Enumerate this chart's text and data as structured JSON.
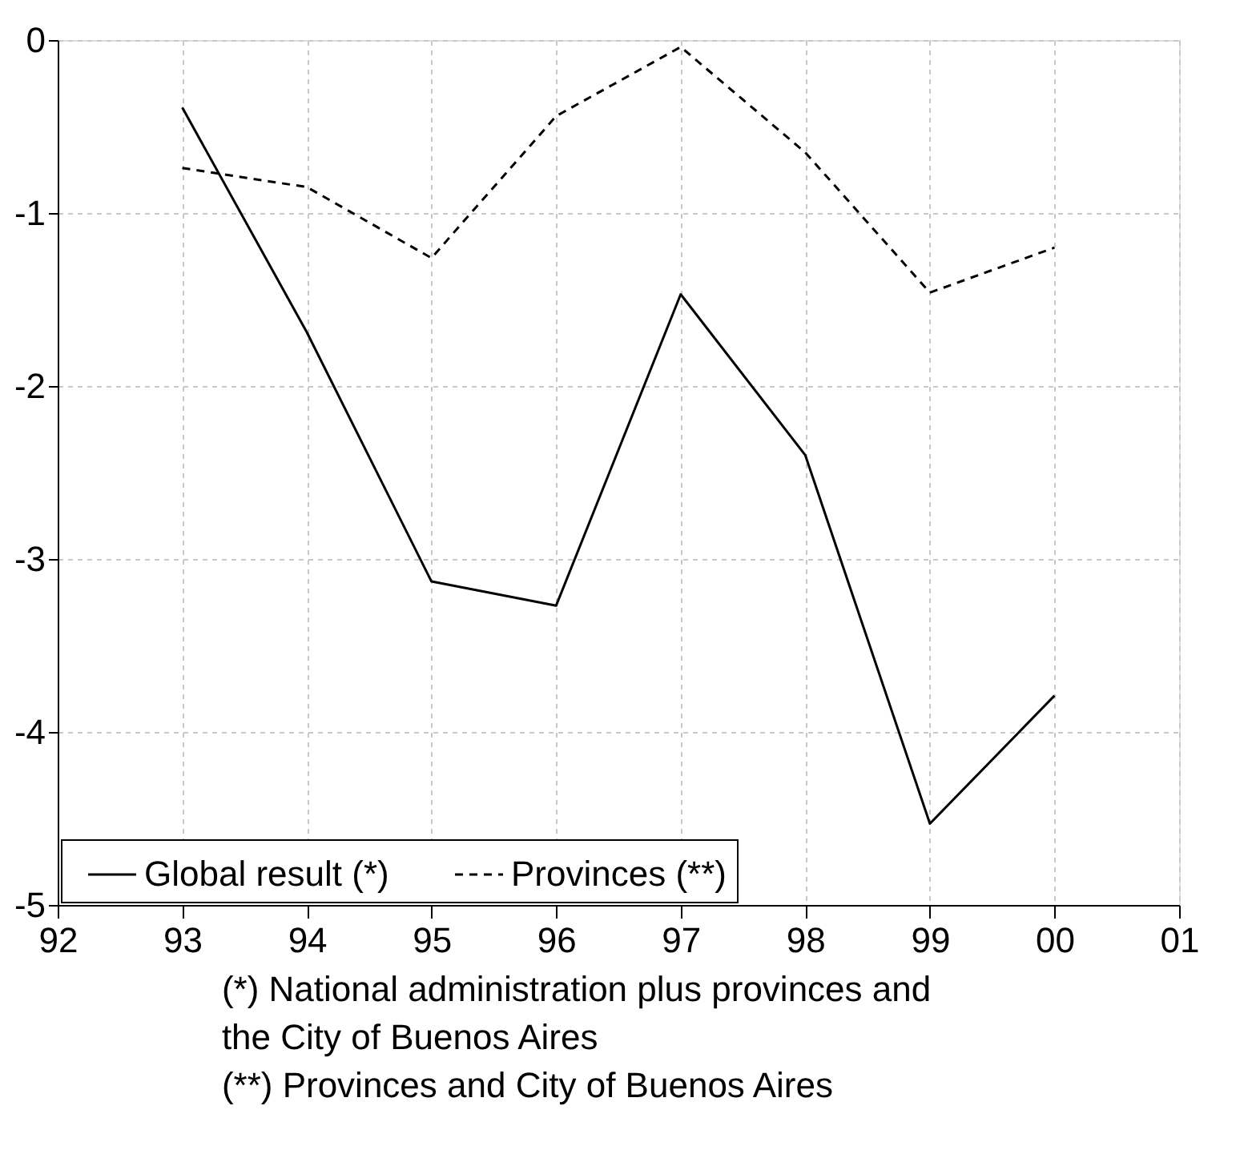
{
  "chart_data": {
    "type": "line",
    "x": [
      1993,
      1994,
      1995,
      1996,
      1997,
      1998,
      1999,
      2000
    ],
    "series": [
      {
        "name": "Global result (*)",
        "color": "#000000",
        "line_style": "solid",
        "values": [
          -0.39,
          -1.69,
          -3.13,
          -3.27,
          -1.47,
          -2.4,
          -4.53,
          -3.79
        ]
      },
      {
        "name": "Provinces (**)",
        "color": "#000000",
        "line_style": "dashed",
        "values": [
          -0.74,
          -0.85,
          -1.26,
          -0.44,
          -0.04,
          -0.65,
          -1.46,
          -1.2
        ]
      }
    ],
    "xlim": [
      1992,
      2001
    ],
    "xticks": [
      {
        "value": 1992,
        "label": "92"
      },
      {
        "value": 1993,
        "label": "93"
      },
      {
        "value": 1994,
        "label": "94"
      },
      {
        "value": 1995,
        "label": "95"
      },
      {
        "value": 1996,
        "label": "96"
      },
      {
        "value": 1997,
        "label": "97"
      },
      {
        "value": 1998,
        "label": "98"
      },
      {
        "value": 1999,
        "label": "99"
      },
      {
        "value": 2000,
        "label": "00"
      },
      {
        "value": 2001,
        "label": "01"
      }
    ],
    "ylim": [
      -5,
      0
    ],
    "yticks": [
      -5,
      -4,
      -3,
      -2,
      -1,
      0
    ],
    "grid": true,
    "legend": "bottom left",
    "marker": "none",
    "annotations": [
      "(*) National administration plus provinces and the City of Buenos Aires",
      "(**) Provinces and City of Buenos Aires"
    ]
  }
}
